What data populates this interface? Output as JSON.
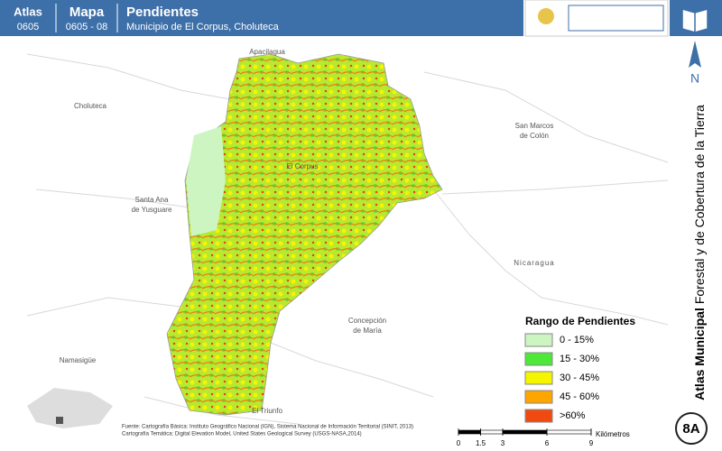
{
  "header": {
    "atlas_label": "Atlas",
    "atlas_code": "0605",
    "map_label": "Mapa",
    "map_code": "0605 - 08",
    "title": "Pendientes",
    "subtitle": "Municipio de El Corpus, Choluteca"
  },
  "map": {
    "places": [
      "Apacilagua",
      "Choluteca",
      "San Marcos",
      "de Colón",
      "El Corpus",
      "Santa Ana",
      "de Yusguare",
      "Nicaragua",
      "Concepción",
      "de María",
      "Namasigüe",
      "El Triunfo"
    ]
  },
  "legend": {
    "title": "Rango de Pendientes",
    "items": [
      {
        "label": "0 - 15%",
        "color": "#ccf5c2"
      },
      {
        "label": "15 - 30%",
        "color": "#4de83a"
      },
      {
        "label": "30 - 45%",
        "color": "#f5f500"
      },
      {
        "label": "45 - 60%",
        "color": "#ffa500"
      },
      {
        "label": ">60%",
        "color": "#f04a10"
      }
    ]
  },
  "source": {
    "line1": "Fuente: Cartografía Básica: Instituto Geográfico Nacional (IGN), Sistema Nacional de Información Territorial (SINIT, 2013)",
    "line2": "Cartografía Temática: Digital Elevation Model, United States Geological Survey (USGS-NASA,2014)"
  },
  "scale": {
    "ticks": [
      0,
      1.5,
      3,
      6,
      9
    ],
    "unit": "Kilómetros"
  },
  "sidebar": {
    "north": "N",
    "title_bold": "Atlas Municipal",
    "title_rest": "Forestal y de Cobertura de la Tierra",
    "page": "8A"
  }
}
